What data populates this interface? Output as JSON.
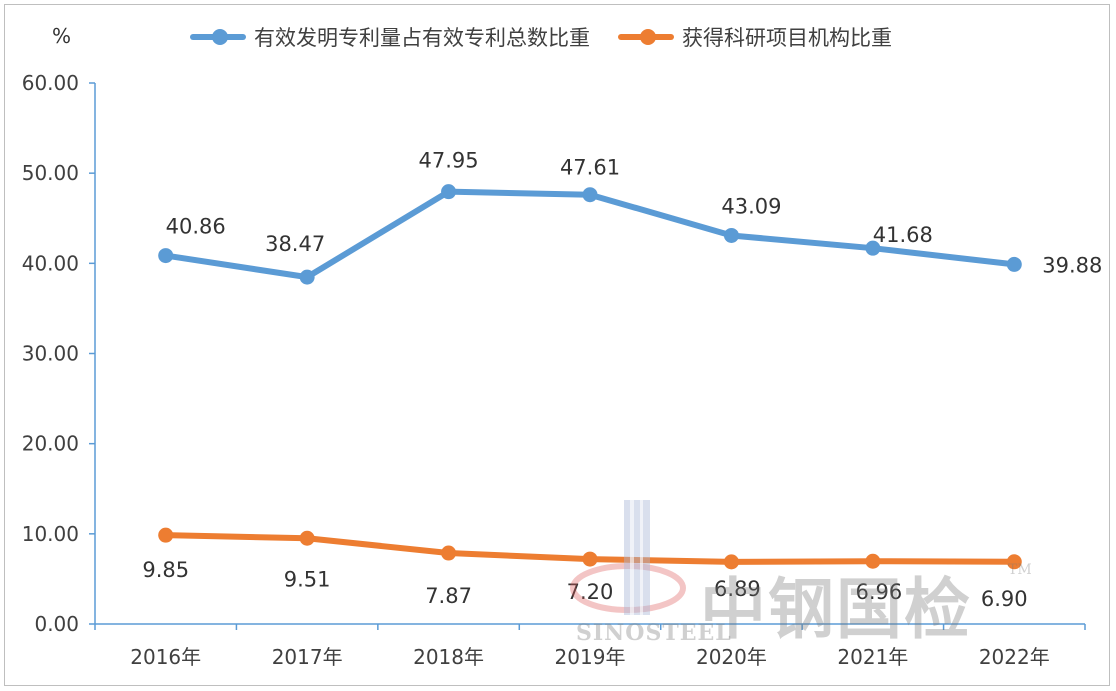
{
  "chart_data": {
    "type": "line",
    "unit_label": "%",
    "categories": [
      "2016年",
      "2017年",
      "2018年",
      "2019年",
      "2020年",
      "2021年",
      "2022年"
    ],
    "ylim": [
      0,
      60
    ],
    "yticks": [
      "0.00",
      "10.00",
      "20.00",
      "30.00",
      "40.00",
      "50.00",
      "60.00"
    ],
    "legend_position": "top",
    "grid": false,
    "series": [
      {
        "name": "有效发明专利量占有效专利总数比重",
        "color": "#5b9bd5",
        "values": [
          40.86,
          38.47,
          47.95,
          47.61,
          43.09,
          41.68,
          39.88
        ],
        "labels": [
          "40.86",
          "38.47",
          "47.95",
          "47.61",
          "43.09",
          "41.68",
          "39.88"
        ]
      },
      {
        "name": "获得科研项目机构比重",
        "color": "#ed7d31",
        "values": [
          9.85,
          9.51,
          7.87,
          7.2,
          6.89,
          6.96,
          6.9
        ],
        "labels": [
          "9.85",
          "9.51",
          "7.87",
          "7.20",
          "6.89",
          "6.96",
          "6.90"
        ]
      }
    ]
  },
  "watermark": {
    "brand": "SINOSTEEL",
    "name": "中钢国检",
    "tm": "TM"
  }
}
